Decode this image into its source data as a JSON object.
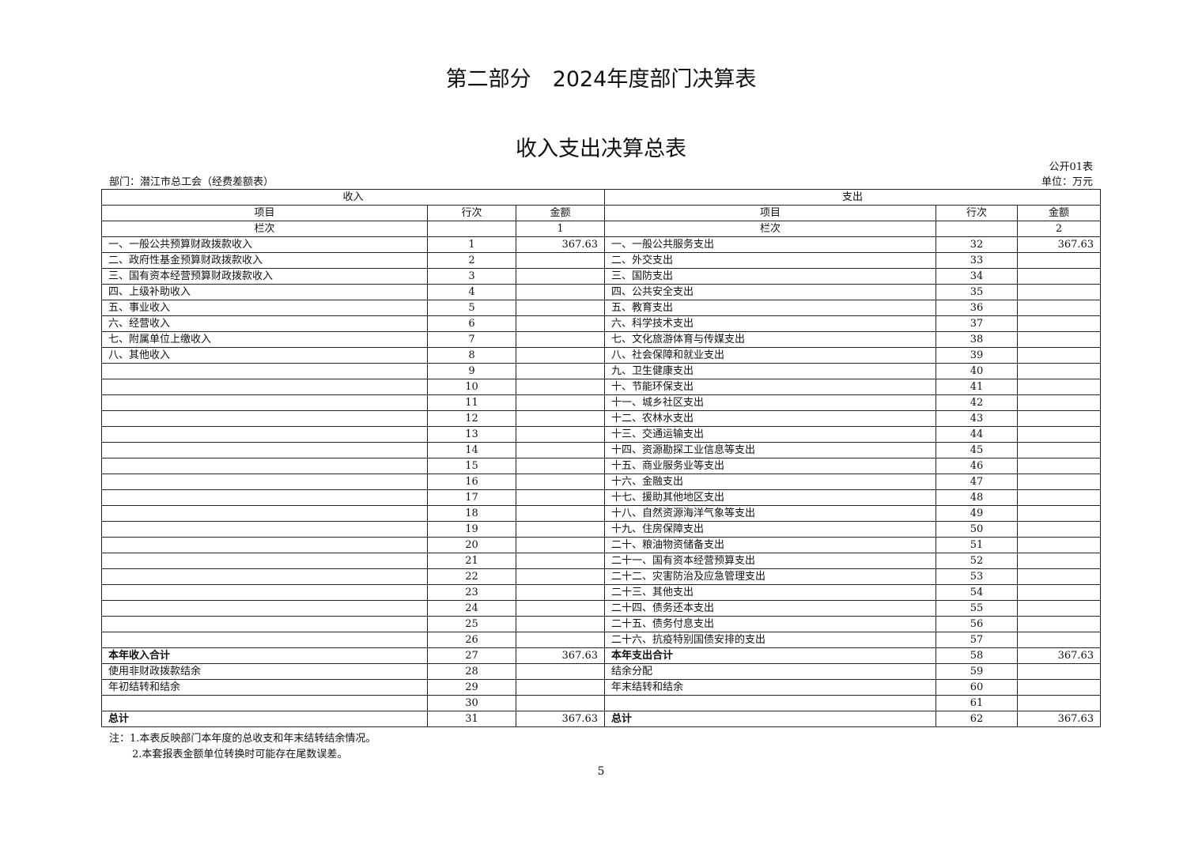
{
  "part_title": "第二部分　2024年度部门决算表",
  "table_title": "收入支出决算总表",
  "table_code": "公开01表",
  "department": "部门：潜江市总工会（经费差额表）",
  "unit": "单位：万元",
  "header": {
    "income": "收入",
    "expense": "支出",
    "item": "项目",
    "row_no": "行次",
    "amount": "金额",
    "column_label": "栏次",
    "income_col": "1",
    "expense_col": "2"
  },
  "rows": [
    {
      "li": "一、一般公共预算财政拨款收入",
      "ln": "1",
      "la": "367.63",
      "ri": "一、一般公共服务支出",
      "rn": "32",
      "ra": "367.63"
    },
    {
      "li": "二、政府性基金预算财政拨款收入",
      "ln": "2",
      "la": "",
      "ri": "二、外交支出",
      "rn": "33",
      "ra": ""
    },
    {
      "li": "三、国有资本经营预算财政拨款收入",
      "ln": "3",
      "la": "",
      "ri": "三、国防支出",
      "rn": "34",
      "ra": ""
    },
    {
      "li": "四、上级补助收入",
      "ln": "4",
      "la": "",
      "ri": "四、公共安全支出",
      "rn": "35",
      "ra": ""
    },
    {
      "li": "五、事业收入",
      "ln": "5",
      "la": "",
      "ri": "五、教育支出",
      "rn": "36",
      "ra": ""
    },
    {
      "li": "六、经营收入",
      "ln": "6",
      "la": "",
      "ri": "六、科学技术支出",
      "rn": "37",
      "ra": ""
    },
    {
      "li": "七、附属单位上缴收入",
      "ln": "7",
      "la": "",
      "ri": "七、文化旅游体育与传媒支出",
      "rn": "38",
      "ra": ""
    },
    {
      "li": "八、其他收入",
      "ln": "8",
      "la": "",
      "ri": "八、社会保障和就业支出",
      "rn": "39",
      "ra": ""
    },
    {
      "li": "",
      "ln": "9",
      "la": "",
      "ri": "九、卫生健康支出",
      "rn": "40",
      "ra": ""
    },
    {
      "li": "",
      "ln": "10",
      "la": "",
      "ri": "十、节能环保支出",
      "rn": "41",
      "ra": ""
    },
    {
      "li": "",
      "ln": "11",
      "la": "",
      "ri": "十一、城乡社区支出",
      "rn": "42",
      "ra": ""
    },
    {
      "li": "",
      "ln": "12",
      "la": "",
      "ri": "十二、农林水支出",
      "rn": "43",
      "ra": ""
    },
    {
      "li": "",
      "ln": "13",
      "la": "",
      "ri": "十三、交通运输支出",
      "rn": "44",
      "ra": ""
    },
    {
      "li": "",
      "ln": "14",
      "la": "",
      "ri": "十四、资源勘探工业信息等支出",
      "rn": "45",
      "ra": ""
    },
    {
      "li": "",
      "ln": "15",
      "la": "",
      "ri": "十五、商业服务业等支出",
      "rn": "46",
      "ra": ""
    },
    {
      "li": "",
      "ln": "16",
      "la": "",
      "ri": "十六、金融支出",
      "rn": "47",
      "ra": ""
    },
    {
      "li": "",
      "ln": "17",
      "la": "",
      "ri": "十七、援助其他地区支出",
      "rn": "48",
      "ra": ""
    },
    {
      "li": "",
      "ln": "18",
      "la": "",
      "ri": "十八、自然资源海洋气象等支出",
      "rn": "49",
      "ra": ""
    },
    {
      "li": "",
      "ln": "19",
      "la": "",
      "ri": "十九、住房保障支出",
      "rn": "50",
      "ra": ""
    },
    {
      "li": "",
      "ln": "20",
      "la": "",
      "ri": "二十、粮油物资储备支出",
      "rn": "51",
      "ra": ""
    },
    {
      "li": "",
      "ln": "21",
      "la": "",
      "ri": "二十一、国有资本经营预算支出",
      "rn": "52",
      "ra": ""
    },
    {
      "li": "",
      "ln": "22",
      "la": "",
      "ri": "二十二、灾害防治及应急管理支出",
      "rn": "53",
      "ra": ""
    },
    {
      "li": "",
      "ln": "23",
      "la": "",
      "ri": "二十三、其他支出",
      "rn": "54",
      "ra": ""
    },
    {
      "li": "",
      "ln": "24",
      "la": "",
      "ri": "二十四、债务还本支出",
      "rn": "55",
      "ra": ""
    },
    {
      "li": "",
      "ln": "25",
      "la": "",
      "ri": "二十五、债务付息支出",
      "rn": "56",
      "ra": ""
    },
    {
      "li": "",
      "ln": "26",
      "la": "",
      "ri": "二十六、抗疫特别国债安排的支出",
      "rn": "57",
      "ra": ""
    },
    {
      "li": "本年收入合计",
      "ln": "27",
      "la": "367.63",
      "ri": "本年支出合计",
      "rn": "58",
      "ra": "367.63",
      "bold": true
    },
    {
      "li": "使用非财政拨款结余",
      "ln": "28",
      "la": "",
      "ri": "结余分配",
      "rn": "59",
      "ra": ""
    },
    {
      "li": "年初结转和结余",
      "ln": "29",
      "la": "",
      "ri": "年末结转和结余",
      "rn": "60",
      "ra": ""
    },
    {
      "li": "",
      "ln": "30",
      "la": "",
      "ri": "",
      "rn": "61",
      "ra": ""
    },
    {
      "li": "总计",
      "ln": "31",
      "la": "367.63",
      "ri": "总计",
      "rn": "62",
      "ra": "367.63",
      "bold": true
    }
  ],
  "notes": [
    "注：1.本表反映部门本年度的总收支和年末结转结余情况。",
    "2.本套报表金额单位转换时可能存在尾数误差。"
  ],
  "page_number": "5"
}
